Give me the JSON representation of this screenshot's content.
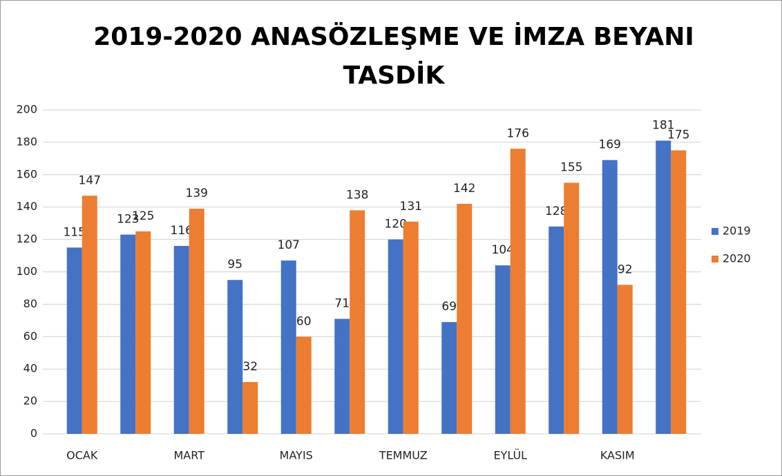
{
  "chart_data": {
    "type": "bar",
    "title": "2019-2020 ANASÖZLEŞME VE İMZA BEYANI TASDİK",
    "categories": [
      "OCAK",
      null,
      "MART",
      null,
      "MAYIS",
      null,
      "TEMMUZ",
      null,
      "EYLÜL",
      null,
      "KASIM",
      null
    ],
    "series": [
      {
        "name": "2019",
        "color": "#4472c4",
        "values": [
          115,
          123,
          116,
          95,
          107,
          71,
          120,
          69,
          104,
          128,
          169,
          181
        ]
      },
      {
        "name": "2020",
        "color": "#ed7d31",
        "values": [
          147,
          125,
          139,
          32,
          60,
          138,
          131,
          142,
          176,
          155,
          92,
          175
        ]
      }
    ],
    "ylim": [
      0,
      200
    ],
    "yticks": [
      0,
      20,
      40,
      60,
      80,
      100,
      120,
      140,
      160,
      180,
      200
    ],
    "grid": true,
    "legend": "right"
  }
}
